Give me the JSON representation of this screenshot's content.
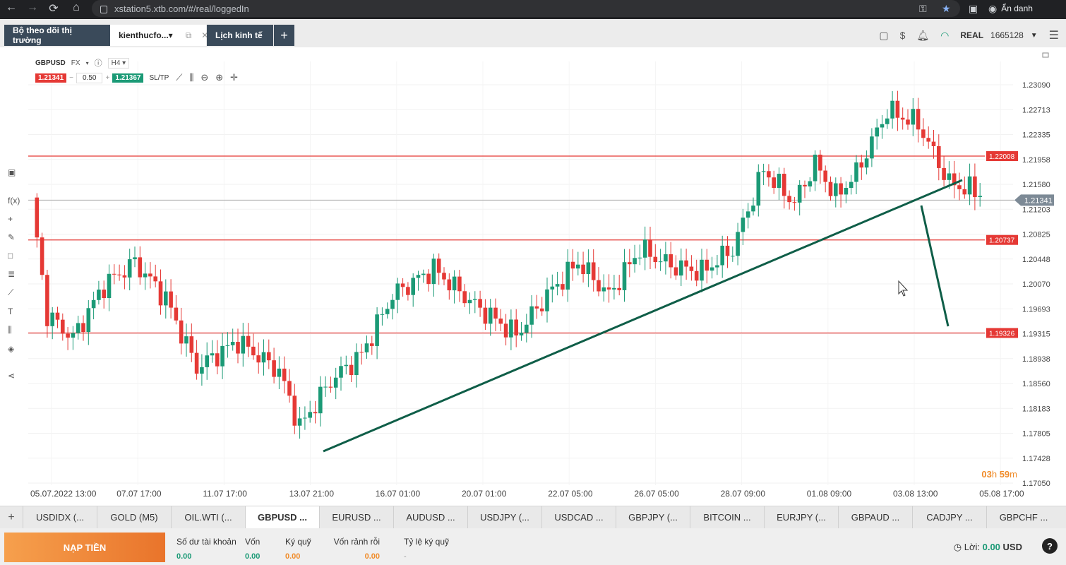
{
  "browser": {
    "url": "xstation5.xtb.com/#/real/loggedIn",
    "profile": "Ẩn danh"
  },
  "header": {
    "tabs": [
      {
        "label": "Bộ theo dõi thị trường"
      },
      {
        "label": "kienthucfo...▾"
      },
      {
        "label": "Lịch kinh tế"
      }
    ],
    "account_type": "REAL",
    "account_number": "1665128"
  },
  "chart": {
    "symbol": "GBPUSD",
    "market": "FX",
    "timeframe": "H4",
    "bid": "1.21341",
    "volume": "0.50",
    "ask": "1.21367",
    "sltp": "SL/TP",
    "timer_h": "03",
    "timer_m": "59",
    "timer_h_unit": "h",
    "timer_m_unit": "m"
  },
  "chart_data": {
    "type": "candlestick",
    "price_axis": [
      "1.23090",
      "1.22713",
      "1.22335",
      "1.21958",
      "1.21580",
      "1.21203",
      "1.20825",
      "1.20448",
      "1.20070",
      "1.19693",
      "1.19315",
      "1.18938",
      "1.18560",
      "1.18183",
      "1.17805",
      "1.17428",
      "1.17050"
    ],
    "time_axis": [
      "05.07.2022 13:00",
      "07.07 17:00",
      "11.07 17:00",
      "13.07 21:00",
      "16.07 01:00",
      "20.07 01:00",
      "22.07 05:00",
      "26.07 05:00",
      "28.07 09:00",
      "01.08 09:00",
      "03.08 13:00",
      "05.08 17:00"
    ],
    "ylim": [
      1.1705,
      1.2309
    ],
    "current_price": "1.21341",
    "horizontal_levels": [
      {
        "label": "1.22008",
        "value": 1.22008
      },
      {
        "label": "1.20737",
        "value": 1.20737
      },
      {
        "label": "1.19326",
        "value": 1.19326
      }
    ],
    "colors": {
      "up": "#1b9a76",
      "down": "#e53935",
      "level": "#e53935",
      "trendline": "#0f5e48"
    }
  },
  "instruments": [
    {
      "label": "USDIDX (..."
    },
    {
      "label": "GOLD (M5)"
    },
    {
      "label": "OIL.WTI (..."
    },
    {
      "label": "GBPUSD ...",
      "active": true
    },
    {
      "label": "EURUSD ..."
    },
    {
      "label": "AUDUSD ..."
    },
    {
      "label": "USDJPY (..."
    },
    {
      "label": "USDCAD ..."
    },
    {
      "label": "GBPJPY (..."
    },
    {
      "label": "BITCOIN ..."
    },
    {
      "label": "EURJPY (..."
    },
    {
      "label": "GBPAUD ..."
    },
    {
      "label": "CADJPY ..."
    },
    {
      "label": "GBPCHF ..."
    }
  ],
  "footer": {
    "deposit_label": "NẠP TIỀN",
    "stats": [
      {
        "label": "Số dư tài khoản",
        "value": "0.00"
      },
      {
        "label": "Vốn",
        "value": "0.00"
      },
      {
        "label": "Ký quỹ",
        "value": "0.00"
      },
      {
        "label": "Vốn rảnh rỗi",
        "value": "0.00"
      },
      {
        "label": "Tỷ lệ ký quỹ",
        "value": "-"
      }
    ],
    "profit_label": "Lời:",
    "profit_value": "0.00",
    "profit_currency": "USD"
  }
}
